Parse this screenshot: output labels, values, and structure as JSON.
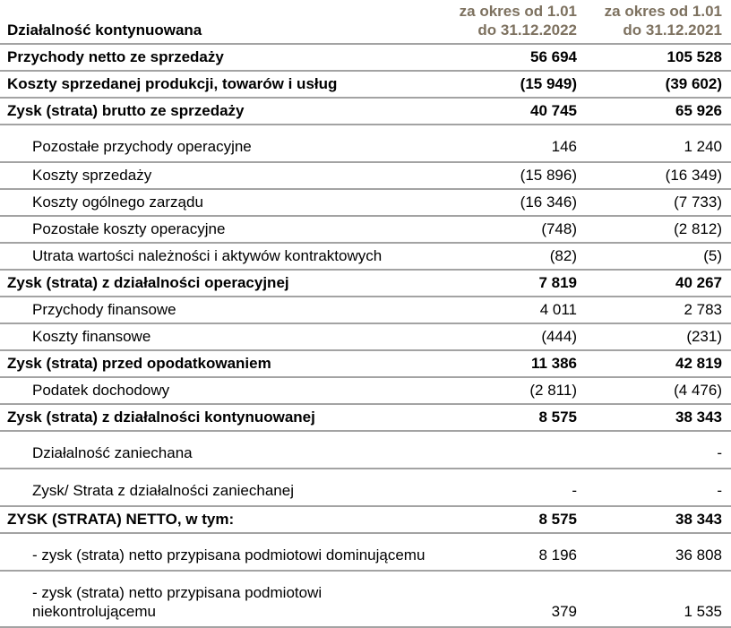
{
  "colors": {
    "header_text": "#7d715f",
    "border": "#a3a3a3",
    "body_text": "#000000",
    "background": "#ffffff"
  },
  "table": {
    "header": {
      "section_label": "Działalność kontynuowana",
      "col_2022": {
        "line1": "za okres od 1.01",
        "line2": "do 31.12.2022"
      },
      "col_2021": {
        "line1": "za okres od 1.01",
        "line2": "do 31.12.2021"
      }
    },
    "rows": [
      {
        "label": "Przychody netto ze sprzedaży",
        "v2022": "56 694",
        "v2021": "105 528",
        "bold": true
      },
      {
        "label": "Koszty sprzedanej produkcji, towarów i usług",
        "v2022": "(15 949)",
        "v2021": "(39 602)",
        "bold": true
      },
      {
        "label": "Zysk (strata) brutto ze sprzedaży",
        "v2022": "40 745",
        "v2021": "65 926",
        "bold": true
      },
      {
        "label": "Pozostałe przychody operacyjne",
        "v2022": "146",
        "v2021": "1 240",
        "indent": true,
        "tall": true
      },
      {
        "label": "Koszty sprzedaży",
        "v2022": "(15 896)",
        "v2021": "(16 349)",
        "indent": true
      },
      {
        "label": "Koszty ogólnego zarządu",
        "v2022": "(16 346)",
        "v2021": "(7 733)",
        "indent": true
      },
      {
        "label": "Pozostałe koszty operacyjne",
        "v2022": "(748)",
        "v2021": "(2 812)",
        "indent": true
      },
      {
        "label": "Utrata wartości należności i aktywów kontraktowych",
        "v2022": "(82)",
        "v2021": "(5)",
        "indent": true
      },
      {
        "label": "Zysk (strata) z działalności operacyjnej",
        "v2022": "7 819",
        "v2021": "40 267",
        "bold": true
      },
      {
        "label": "Przychody finansowe",
        "v2022": "4 011",
        "v2021": "2 783",
        "indent": true
      },
      {
        "label": "Koszty finansowe",
        "v2022": "(444)",
        "v2021": "(231)",
        "indent": true
      },
      {
        "label": "Zysk (strata) przed opodatkowaniem",
        "v2022": "11 386",
        "v2021": "42 819",
        "bold": true
      },
      {
        "label": "Podatek dochodowy",
        "v2022": "(2 811)",
        "v2021": "(4 476)",
        "indent": true
      },
      {
        "label": "Zysk (strata) z działalności kontynuowanej",
        "v2022": "8 575",
        "v2021": "38 343",
        "bold": true
      },
      {
        "label": "Działalność zaniechana",
        "v2022": "",
        "v2021": "-",
        "indent": true,
        "tall": true
      },
      {
        "label": "Zysk/ Strata z działalności zaniechanej",
        "v2022": "-",
        "v2021": "-",
        "indent": true,
        "tall": true
      },
      {
        "label": "ZYSK (STRATA) NETTO, w tym:",
        "v2022": "8 575",
        "v2021": "38 343",
        "bold": true
      },
      {
        "label": "- zysk (strata) netto przypisana podmiotowi dominującemu",
        "v2022": "8 196",
        "v2021": "36 808",
        "indent": true,
        "tall": true
      },
      {
        "label": "- zysk (strata) netto przypisana podmiotowi niekontrolującemu",
        "v2022": "379",
        "v2021": "1 535",
        "indent": true,
        "tall": true
      }
    ]
  }
}
